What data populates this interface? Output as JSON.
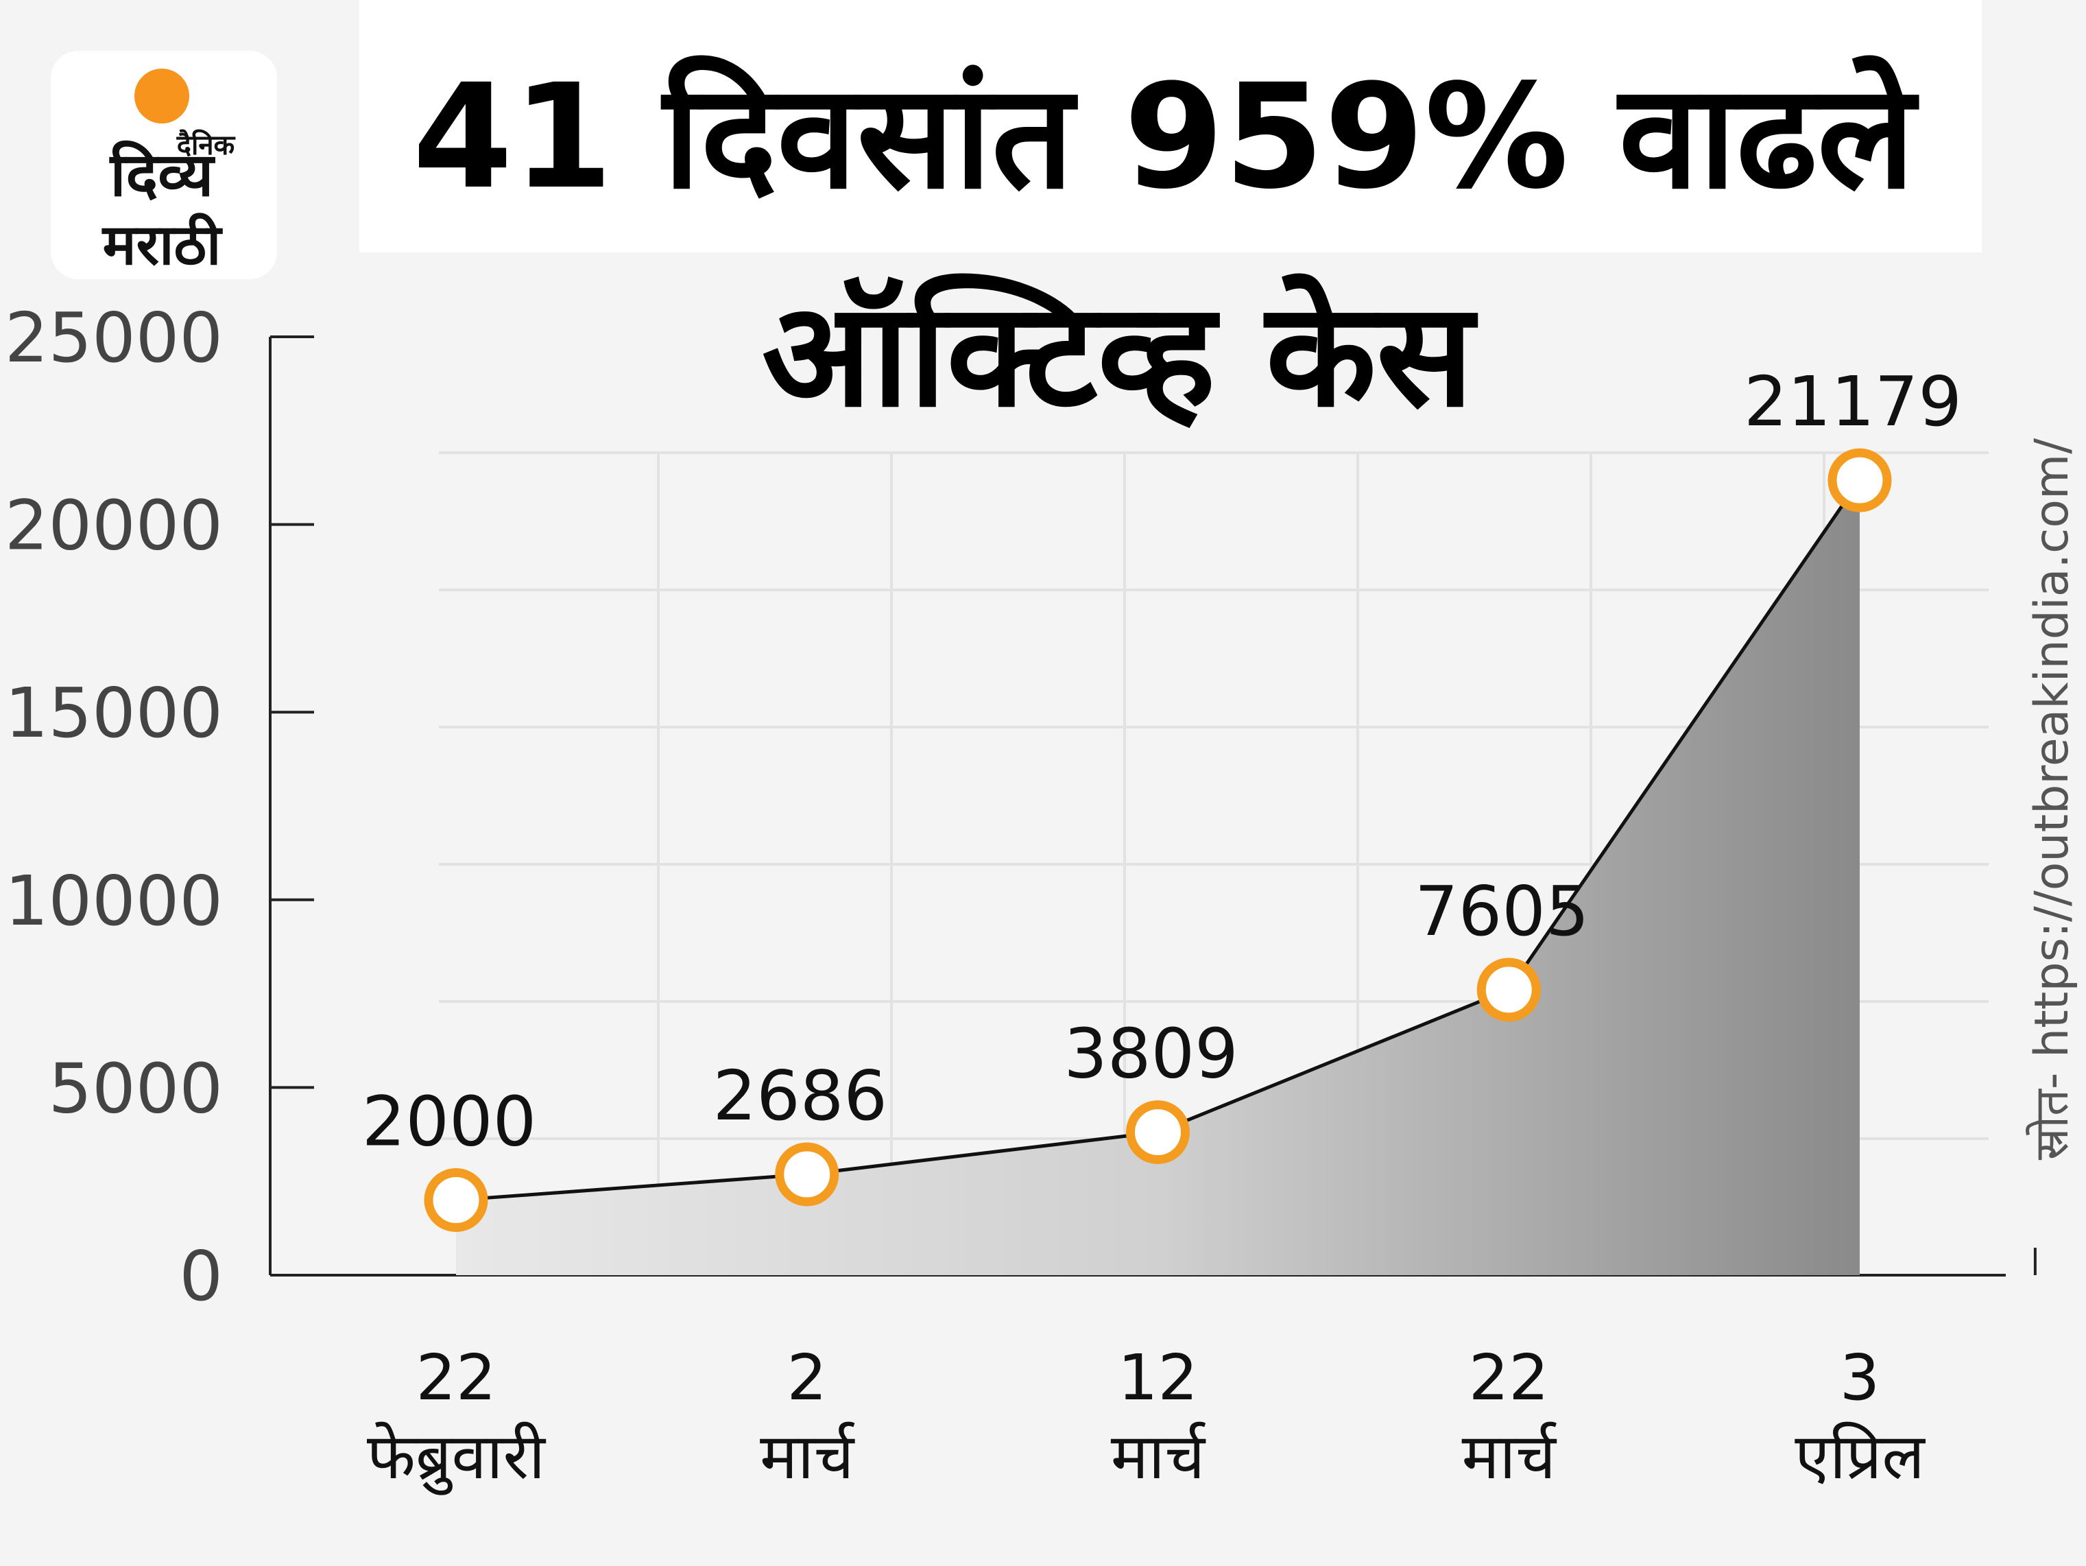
{
  "logo": {
    "top": "दैनिक",
    "middle": "दिव्य",
    "bottom": "मराठी"
  },
  "source": "स्रोत- https://outbreakindia.com/",
  "chart_data": {
    "type": "line",
    "title": [
      "41 दिवसांत 959% वाढले",
      "ऑक्टिव्ह केस"
    ],
    "categories": [
      "22 फेब्रुवारी",
      "2 मार्च",
      "12 मार्च",
      "22 मार्च",
      "3 एप्रिल"
    ],
    "values": [
      2000,
      2686,
      3809,
      7605,
      21179
    ],
    "color": "#111111",
    "marker_color": "#f39c1f",
    "ylim": [
      0,
      25000
    ],
    "yticks": [
      0,
      5000,
      10000,
      15000,
      20000,
      25000
    ]
  }
}
